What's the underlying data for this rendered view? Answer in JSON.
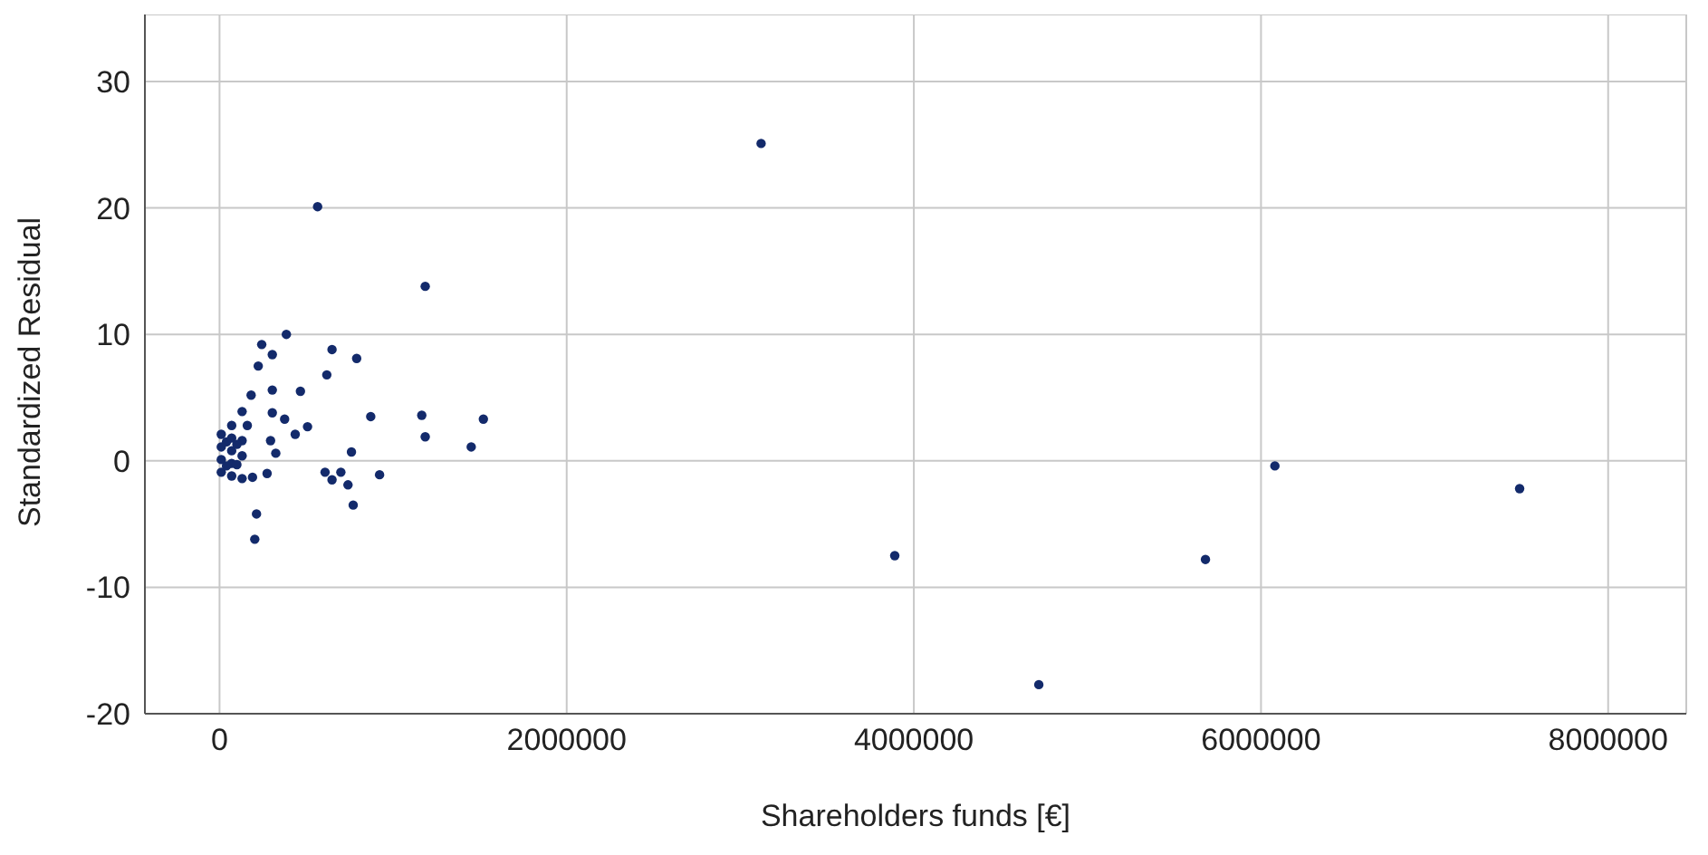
{
  "chart_data": {
    "type": "scatter",
    "xlabel": "Shareholders funds [€]",
    "ylabel": "Standardized Residual",
    "xlim": [
      -430000,
      8450000
    ],
    "ylim": [
      -20,
      35.3
    ],
    "xticks": [
      0,
      2000000,
      4000000,
      6000000,
      8000000
    ],
    "yticks": [
      -20,
      -10,
      0,
      10,
      20,
      30
    ],
    "grid": true,
    "marker": "circle",
    "series": [
      {
        "color": "#132a6b",
        "x": [
          3120000,
          3890000,
          4720000,
          5680000,
          6080000,
          7490000,
          565000,
          1185000,
          385000,
          243000,
          304000,
          648000,
          790000,
          223000,
          618000,
          304000,
          466000,
          182000,
          871000,
          1165000,
          1520000,
          1185000,
          1450000,
          760000,
          507000,
          436000,
          375000,
          304000,
          608000,
          648000,
          699000,
          740000,
          922000,
          770000,
          213000,
          203000,
          274000,
          324000,
          294000,
          10000,
          10000,
          10000,
          10000,
          70000,
          70000,
          70000,
          70000,
          70000,
          130000,
          130000,
          130000,
          130000,
          160000,
          190000,
          40000,
          100000,
          40000,
          100000
        ],
        "values": [
          25.1,
          -7.5,
          -17.7,
          -7.8,
          -0.4,
          -2.2,
          20.1,
          13.8,
          10.0,
          9.2,
          8.4,
          8.8,
          8.1,
          7.5,
          6.8,
          5.6,
          5.5,
          5.2,
          3.5,
          3.6,
          3.3,
          1.9,
          1.1,
          0.7,
          2.7,
          2.1,
          3.3,
          3.8,
          -0.9,
          -1.5,
          -0.9,
          -1.9,
          -1.1,
          -3.5,
          -4.2,
          -6.2,
          -1.0,
          0.6,
          1.6,
          -0.9,
          0.1,
          1.1,
          2.1,
          -1.2,
          -0.2,
          0.8,
          1.8,
          2.8,
          -1.4,
          0.4,
          1.6,
          3.9,
          2.8,
          -1.3,
          -0.4,
          -0.3,
          1.5,
          1.3
        ]
      }
    ]
  }
}
